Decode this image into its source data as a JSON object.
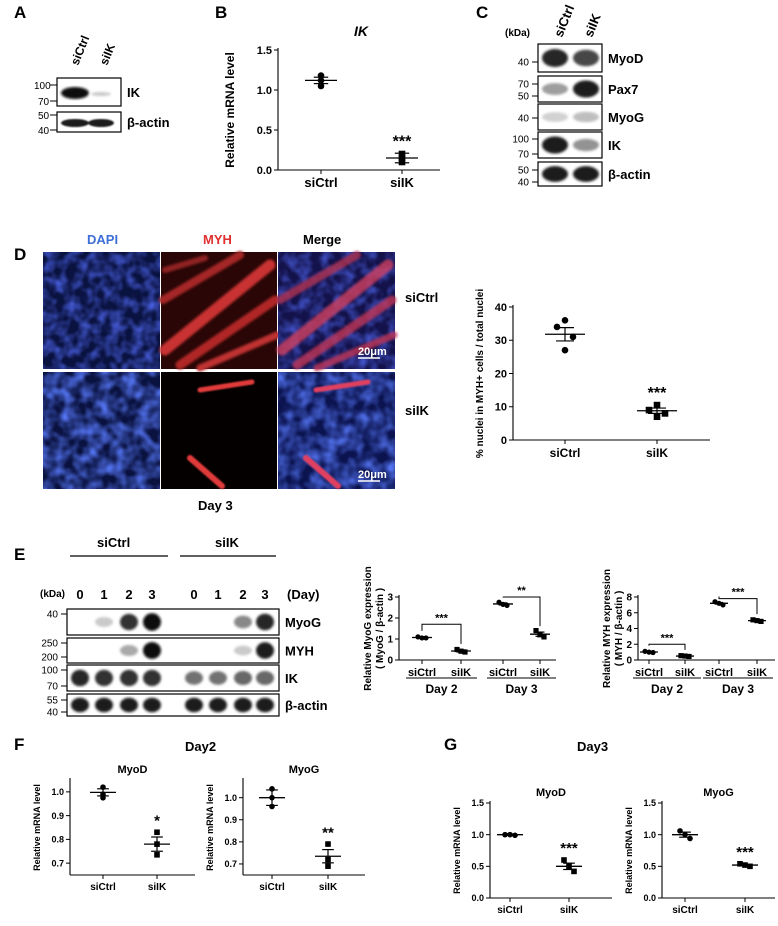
{
  "panels": {
    "A": {
      "letter": "A",
      "lanes": [
        "siCtrl",
        "siIK"
      ],
      "blots": [
        {
          "label": "IK",
          "markers": [
            "100",
            "70"
          ]
        },
        {
          "label": "β-actin",
          "markers": [
            "50",
            "40"
          ]
        }
      ]
    },
    "B": {
      "letter": "B",
      "chart_data": {
        "type": "scatter",
        "title": "IK",
        "ylabel": "Relative mRNA level",
        "categories": [
          "siCtrl",
          "siIK"
        ],
        "ylim": [
          0,
          1.5
        ],
        "yticks": [
          0.0,
          0.5,
          1.0,
          1.5
        ],
        "ytick_labels": [
          "0.0",
          "0.5",
          "1.0",
          "1.5"
        ],
        "points": [
          [
            1.18,
            1.12,
            1.05
          ],
          [
            0.2,
            0.15,
            0.1
          ]
        ],
        "means": [
          1.12,
          0.15
        ],
        "sems": [
          0.04,
          0.06
        ],
        "sig": [
          "",
          "***"
        ]
      }
    },
    "C": {
      "letter": "C",
      "kda_label": "(kDa)",
      "lanes": [
        "siCtrl",
        "siIK"
      ],
      "blots": [
        {
          "label": "MyoD",
          "markers": [
            "40"
          ]
        },
        {
          "label": "Pax7",
          "markers": [
            "70",
            "50"
          ]
        },
        {
          "label": "MyoG",
          "markers": [
            "40"
          ]
        },
        {
          "label": "IK",
          "markers": [
            "100",
            "70"
          ]
        },
        {
          "label": "β-actin",
          "markers": [
            "50",
            "40"
          ]
        }
      ]
    },
    "D": {
      "letter": "D",
      "columns": [
        "DAPI",
        "MYH",
        "Merge"
      ],
      "rows": [
        "siCtrl",
        "siIK"
      ],
      "scale_bar": "20μm",
      "day_label": "Day 3",
      "chart_data": {
        "type": "scatter",
        "ylabel": "% nuclei in MYH+ cells / total nuclei",
        "categories": [
          "siCtrl",
          "siIK"
        ],
        "ylim": [
          0,
          40
        ],
        "yticks": [
          0,
          10,
          20,
          30,
          40
        ],
        "ytick_labels": [
          "0",
          "10",
          "20",
          "30",
          "40"
        ],
        "points": [
          [
            36,
            34,
            31,
            27
          ],
          [
            10.5,
            9,
            8,
            7
          ]
        ],
        "means": [
          31.8,
          8.8
        ],
        "sems": [
          2,
          0.8
        ],
        "sig": [
          "",
          "***"
        ]
      }
    },
    "E": {
      "letter": "E",
      "kda_label": "(kDa)",
      "groups": [
        "siCtrl",
        "siIK"
      ],
      "lanes": [
        "0",
        "1",
        "2",
        "3",
        "0",
        "1",
        "2",
        "3"
      ],
      "day_label": "(Day)",
      "blots": [
        {
          "label": "MyoG",
          "markers": [
            "40"
          ]
        },
        {
          "label": "MYH",
          "markers": [
            "250",
            "200"
          ]
        },
        {
          "label": "IK",
          "markers": [
            "100",
            "70"
          ]
        },
        {
          "label": "β-actin",
          "markers": [
            "55",
            "40"
          ]
        }
      ],
      "charts": [
        {
          "type": "scatter",
          "ylabel": "Relative MyoG expression",
          "ylabel2": "( MyoG / β-actin )",
          "categories": [
            "siCtrl",
            "siIK",
            "siCtrl",
            "siIK"
          ],
          "day_groups": [
            "Day 2",
            "Day 3"
          ],
          "ylim": [
            0,
            3
          ],
          "yticks": [
            0,
            1,
            2,
            3
          ],
          "ytick_labels": [
            "0",
            "1",
            "2",
            "3"
          ],
          "points": [
            [
              1.1,
              1.05,
              1.05
            ],
            [
              0.5,
              0.42,
              0.38
            ],
            [
              2.75,
              2.65,
              2.6
            ],
            [
              1.4,
              1.2,
              1.1
            ]
          ],
          "means": [
            1.07,
            0.43,
            2.67,
            1.23
          ],
          "sems": [
            0.03,
            0.05,
            0.05,
            0.1
          ],
          "comparisons": [
            {
              "a": 0,
              "b": 1,
              "sig": "***",
              "y": 1.7
            },
            {
              "a": 2,
              "b": 3,
              "sig": "**",
              "y": 3.0
            }
          ]
        },
        {
          "type": "scatter",
          "ylabel": "Relative MYH expression",
          "ylabel2": "( MYH / β-actin )",
          "categories": [
            "siCtrl",
            "siIK",
            "siCtrl",
            "siIK"
          ],
          "day_groups": [
            "Day 2",
            "Day 3"
          ],
          "ylim": [
            0,
            8
          ],
          "yticks": [
            0,
            2,
            4,
            6,
            8
          ],
          "ytick_labels": [
            "0",
            "2",
            "4",
            "6",
            "8"
          ],
          "points": [
            [
              1.1,
              1.0,
              0.95
            ],
            [
              0.55,
              0.5,
              0.45
            ],
            [
              7.4,
              7.2,
              7.0
            ],
            [
              5.1,
              5.0,
              4.9
            ]
          ],
          "means": [
            1.02,
            0.5,
            7.2,
            5.0
          ],
          "sems": [
            0.05,
            0.03,
            0.1,
            0.06
          ],
          "comparisons": [
            {
              "a": 0,
              "b": 1,
              "sig": "***",
              "y": 2.0
            },
            {
              "a": 2,
              "b": 3,
              "sig": "***",
              "y": 7.8
            }
          ]
        }
      ]
    },
    "F": {
      "letter": "F",
      "title": "Day2",
      "charts": [
        {
          "type": "scatter",
          "title": "MyoD",
          "ylabel": "Relative mRNA level",
          "categories": [
            "siCtrl",
            "siIK"
          ],
          "ylim": [
            0.65,
            1.05
          ],
          "yticks": [
            0.7,
            0.8,
            0.9,
            1.0
          ],
          "ytick_labels": [
            "0.7",
            "0.8",
            "0.9",
            "1.0"
          ],
          "points": [
            [
              1.02,
              0.99,
              0.975
            ],
            [
              0.83,
              0.78,
              0.735
            ]
          ],
          "means": [
            0.998,
            0.78
          ],
          "sems": [
            0.015,
            0.03
          ],
          "sig": [
            "",
            "*"
          ]
        },
        {
          "type": "scatter",
          "title": "MyoG",
          "ylabel": "Relative mRNA level",
          "categories": [
            "siCtrl",
            "siIK"
          ],
          "ylim": [
            0.65,
            1.08
          ],
          "yticks": [
            0.7,
            0.8,
            0.9,
            1.0
          ],
          "ytick_labels": [
            "0.7",
            "0.8",
            "0.9",
            "1.0"
          ],
          "points": [
            [
              1.04,
              1.0,
              0.96
            ],
            [
              0.79,
              0.72,
              0.69
            ]
          ],
          "means": [
            1.0,
            0.735
          ],
          "sems": [
            0.035,
            0.03
          ],
          "sig": [
            "",
            "**"
          ]
        }
      ]
    },
    "G": {
      "letter": "G",
      "title": "Day3",
      "charts": [
        {
          "type": "scatter",
          "title": "MyoD",
          "ylabel": "Relative mRNA level",
          "categories": [
            "siCtrl",
            "siIK"
          ],
          "ylim": [
            0,
            1.5
          ],
          "yticks": [
            0.0,
            0.5,
            1.0,
            1.5
          ],
          "ytick_labels": [
            "0.0",
            "0.5",
            "1.0",
            "1.5"
          ],
          "points": [
            [
              1.0,
              1.0,
              0.99
            ],
            [
              0.6,
              0.5,
              0.42
            ]
          ],
          "means": [
            1.0,
            0.5
          ],
          "sems": [
            0.01,
            0.05
          ],
          "sig": [
            "",
            "***"
          ]
        },
        {
          "type": "scatter",
          "title": "MyoG",
          "ylabel": "Relative mRNA level",
          "categories": [
            "siCtrl",
            "siIK"
          ],
          "ylim": [
            0,
            1.5
          ],
          "yticks": [
            0.0,
            0.5,
            1.0,
            1.5
          ],
          "ytick_labels": [
            "0.0",
            "0.5",
            "1.0",
            "1.5"
          ],
          "points": [
            [
              1.06,
              1.0,
              0.94
            ],
            [
              0.54,
              0.52,
              0.5
            ]
          ],
          "means": [
            1.0,
            0.52
          ],
          "sems": [
            0.04,
            0.01
          ],
          "sig": [
            "",
            "***"
          ]
        }
      ]
    }
  }
}
